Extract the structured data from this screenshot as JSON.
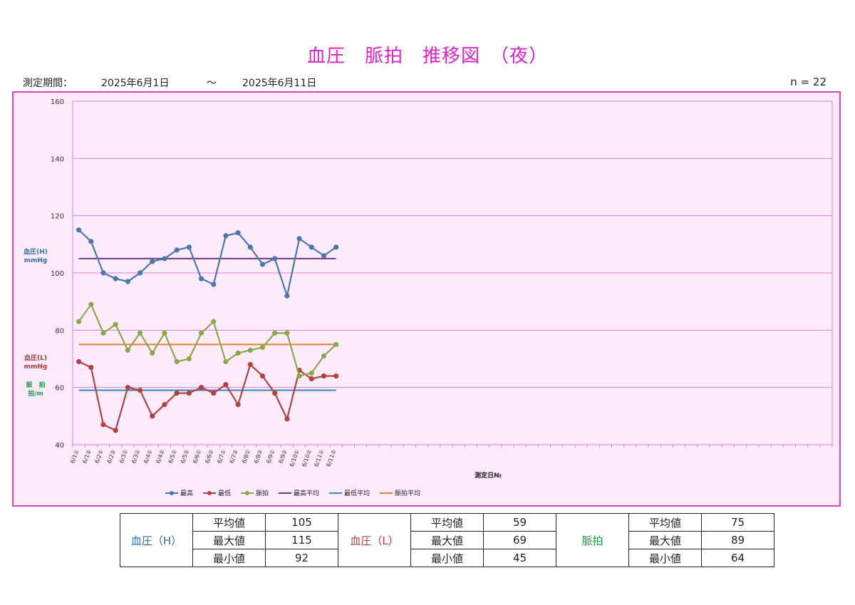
{
  "header": {
    "title": "血圧　脈拍　推移図　（夜）",
    "period_label": "測定期間：",
    "start_date": "2025年6月1日",
    "separator": "～",
    "end_date": "2025年6月11日",
    "n_label": "n = 22"
  },
  "chart_data": {
    "type": "line",
    "ylim": [
      40,
      160
    ],
    "yticks": [
      40,
      60,
      80,
      100,
      120,
      140,
      160
    ],
    "xlabel": "測定日№",
    "ylabels": [
      {
        "text": "血圧(H)\nmmHg",
        "color": "#2f6fa8"
      },
      {
        "text": "血圧(L)\nmmHg",
        "color": "#a03a3a"
      },
      {
        "text": "脈　拍\n拍/m",
        "color": "#1aa04a"
      }
    ],
    "categories": [
      "6/1①",
      "6/1②",
      "6/2①",
      "6/2②",
      "6/3①",
      "6/3②",
      "6/4①",
      "6/4②",
      "6/5①",
      "6/5②",
      "6/6①",
      "6/6②",
      "6/7①",
      "6/7②",
      "6/8①",
      "6/8②",
      "6/9①",
      "6/9②",
      "6/10①",
      "6/10②",
      "6/11①",
      "6/11②"
    ],
    "total_slots": 62,
    "series": [
      {
        "name": "最高",
        "color": "#4a78ad",
        "values": [
          115,
          111,
          100,
          98,
          97,
          100,
          104,
          105,
          108,
          109,
          98,
          96,
          113,
          114,
          109,
          103,
          105,
          92,
          112,
          109,
          106,
          109
        ]
      },
      {
        "name": "最低",
        "color": "#b04240",
        "values": [
          69,
          67,
          47,
          45,
          60,
          59,
          50,
          54,
          58,
          58,
          60,
          58,
          61,
          54,
          68,
          64,
          58,
          49,
          66,
          63,
          64,
          64
        ]
      },
      {
        "name": "脈拍",
        "color": "#8aa84a",
        "values": [
          83,
          89,
          79,
          82,
          73,
          79,
          72,
          79,
          69,
          70,
          79,
          83,
          69,
          72,
          73,
          74,
          79,
          79,
          64,
          65,
          71,
          75
        ]
      }
    ],
    "averages": [
      {
        "name": "最高平均",
        "color": "#6a3a78",
        "value": 105
      },
      {
        "name": "最低平均",
        "color": "#3a8ab0",
        "value": 59
      },
      {
        "name": "脈拍平均",
        "color": "#e08030",
        "value": 75
      }
    ]
  },
  "stats": [
    {
      "group": "血圧（H）",
      "color": "#2f6fa8",
      "rows": [
        {
          "label": "平均値",
          "value": "105"
        },
        {
          "label": "最大値",
          "value": "115"
        },
        {
          "label": "最小値",
          "value": "92"
        }
      ]
    },
    {
      "group": "血圧（L）",
      "color": "#c04040",
      "rows": [
        {
          "label": "平均値",
          "value": "59"
        },
        {
          "label": "最大値",
          "value": "69"
        },
        {
          "label": "最小値",
          "value": "45"
        }
      ]
    },
    {
      "group": "脈拍",
      "color": "#1aa04a",
      "rows": [
        {
          "label": "平均値",
          "value": "75"
        },
        {
          "label": "最大値",
          "value": "89"
        },
        {
          "label": "最小値",
          "value": "64"
        }
      ]
    }
  ]
}
